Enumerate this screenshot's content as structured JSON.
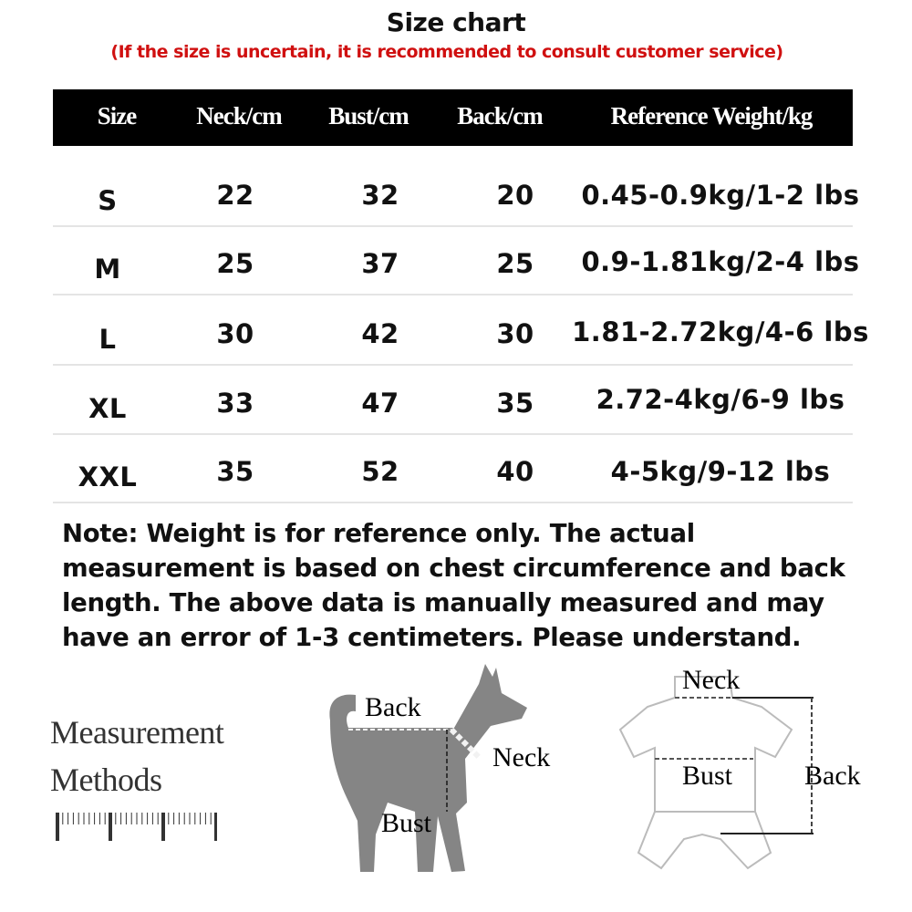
{
  "title": "Size chart",
  "subtitle": "(If the size is uncertain, it is recommended to consult customer service)",
  "table": {
    "headers": [
      "Size",
      "Neck/cm",
      "Bust/cm",
      "Back/cm",
      "Reference Weight/kg"
    ],
    "rows": [
      [
        "S",
        "22",
        "32",
        "20",
        "0.45-0.9kg/1-2 lbs"
      ],
      [
        "M",
        "25",
        "37",
        "25",
        "0.9-1.81kg/2-4 lbs"
      ],
      [
        "L",
        "30",
        "42",
        "30",
        "1.81-2.72kg/4-6 lbs"
      ],
      [
        "XL",
        "33",
        "47",
        "35",
        "2.72-4kg/6-9 lbs"
      ],
      [
        "XXL",
        "35",
        "52",
        "40",
        "4-5kg/9-12 lbs"
      ]
    ]
  },
  "note": "Note: Weight is for reference only. The actual measurement is based on chest circumference and back length. The above data is manually measured and may have an error of 1-3 centimeters. Please understand.",
  "measurement": {
    "line1": "Measurement",
    "line2": "Methods",
    "icon": "ruler-icon"
  },
  "dog_diagram": {
    "back": "Back",
    "neck": "Neck",
    "bust": "Bust",
    "color": "#858585"
  },
  "garment_diagram": {
    "neck": "Neck",
    "bust": "Bust",
    "back": "Back"
  },
  "colors": {
    "header_bg": "#000000",
    "subtitle": "#d01010"
  }
}
